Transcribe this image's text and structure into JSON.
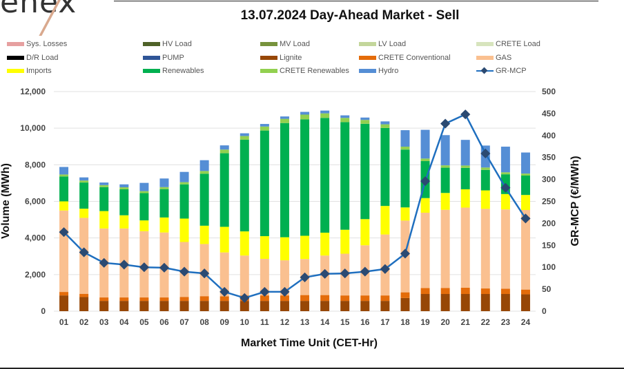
{
  "logo_text": "enex",
  "chart_data": {
    "type": "bar",
    "stacked": true,
    "title": "13.07.2024  Day-Ahead Market - Sell",
    "xlabel": "Market Time Unit (CET-Hr)",
    "ylabel": "Volume (MWh)",
    "y2label": "GR-MCP (€/MWh)",
    "ylim": [
      0,
      12000
    ],
    "y2lim": [
      0,
      500
    ],
    "yticks": [
      "0",
      "2,000",
      "4,000",
      "6,000",
      "8,000",
      "10,000",
      "12,000"
    ],
    "y2ticks": [
      "0",
      "50",
      "100",
      "150",
      "200",
      "250",
      "300",
      "350",
      "400",
      "450",
      "500"
    ],
    "grid": true,
    "legend_position": "top",
    "categories": [
      "01",
      "02",
      "03",
      "04",
      "05",
      "06",
      "07",
      "08",
      "09",
      "10",
      "11",
      "12",
      "13",
      "14",
      "15",
      "16",
      "17",
      "18",
      "19",
      "20",
      "21",
      "22",
      "23",
      "24"
    ],
    "legend": [
      {
        "name": "Sys. Losses",
        "color": "#e6a0a0"
      },
      {
        "name": "HV Load",
        "color": "#4f6228"
      },
      {
        "name": "MV Load",
        "color": "#77933c"
      },
      {
        "name": "LV Load",
        "color": "#c3d69b"
      },
      {
        "name": "CRETE Load",
        "color": "#d7e4bd"
      },
      {
        "name": "D/R Load",
        "color": "#000000"
      },
      {
        "name": "PUMP",
        "color": "#2f5597"
      },
      {
        "name": "Lignite",
        "color": "#974706"
      },
      {
        "name": "CRETE Conventional",
        "color": "#e46c0a"
      },
      {
        "name": "GAS",
        "color": "#fac090"
      },
      {
        "name": "Imports",
        "color": "#ffff00"
      },
      {
        "name": "Renewables",
        "color": "#00b050"
      },
      {
        "name": "CRETE Renewables",
        "color": "#92d050"
      },
      {
        "name": "Hydro",
        "color": "#558ed5"
      },
      {
        "name": "GR-MCP",
        "color": "#1f6fbf",
        "marker": "diamond"
      }
    ],
    "series": [
      {
        "name": "Lignite",
        "color": "#974706",
        "values": [
          860,
          770,
          560,
          560,
          560,
          560,
          560,
          560,
          560,
          560,
          560,
          560,
          560,
          560,
          560,
          560,
          560,
          720,
          940,
          940,
          940,
          940,
          940,
          920
        ]
      },
      {
        "name": "CRETE Conventional",
        "color": "#e46c0a",
        "values": [
          190,
          180,
          190,
          190,
          190,
          190,
          220,
          260,
          250,
          300,
          300,
          300,
          320,
          320,
          300,
          300,
          300,
          310,
          320,
          330,
          340,
          300,
          290,
          260
        ]
      },
      {
        "name": "GAS",
        "color": "#fac090",
        "values": [
          4450,
          4150,
          3770,
          3770,
          3620,
          3550,
          3000,
          2850,
          2400,
          2180,
          2000,
          1920,
          1970,
          2160,
          2280,
          2740,
          3330,
          3920,
          4120,
          4270,
          4380,
          4350,
          4330,
          4350
        ]
      },
      {
        "name": "Imports",
        "color": "#ffff00",
        "values": [
          500,
          500,
          950,
          720,
          590,
          820,
          1280,
          1000,
          1400,
          1320,
          1240,
          1260,
          1270,
          1250,
          1310,
          1430,
          1560,
          720,
          800,
          920,
          1000,
          1010,
          840,
          820
        ]
      },
      {
        "name": "Renewables",
        "color": "#00b050",
        "values": [
          1360,
          1430,
          1310,
          1420,
          1490,
          1550,
          1870,
          2840,
          4020,
          5010,
          5770,
          6240,
          6360,
          6270,
          5880,
          5210,
          4260,
          3160,
          2020,
          1380,
          1170,
          1120,
          1080,
          1060
        ]
      },
      {
        "name": "CRETE Renewables",
        "color": "#92d050",
        "values": [
          110,
          110,
          110,
          110,
          110,
          110,
          120,
          150,
          200,
          200,
          220,
          230,
          260,
          250,
          230,
          210,
          200,
          160,
          140,
          130,
          130,
          130,
          110,
          110
        ]
      },
      {
        "name": "Hydro",
        "color": "#558ed5",
        "values": [
          410,
          170,
          140,
          160,
          450,
          470,
          560,
          590,
          230,
          150,
          140,
          130,
          150,
          150,
          140,
          130,
          160,
          900,
          1570,
          1650,
          1400,
          1200,
          1400,
          1150
        ]
      }
    ],
    "line_series": {
      "name": "GR-MCP",
      "axis": "right",
      "color": "#1f6fbf",
      "values": [
        180,
        134,
        110,
        106,
        100,
        99,
        90,
        86,
        44,
        30,
        44,
        44,
        77,
        85,
        86,
        90,
        96,
        131,
        296,
        427,
        448,
        359,
        281,
        211
      ]
    }
  }
}
